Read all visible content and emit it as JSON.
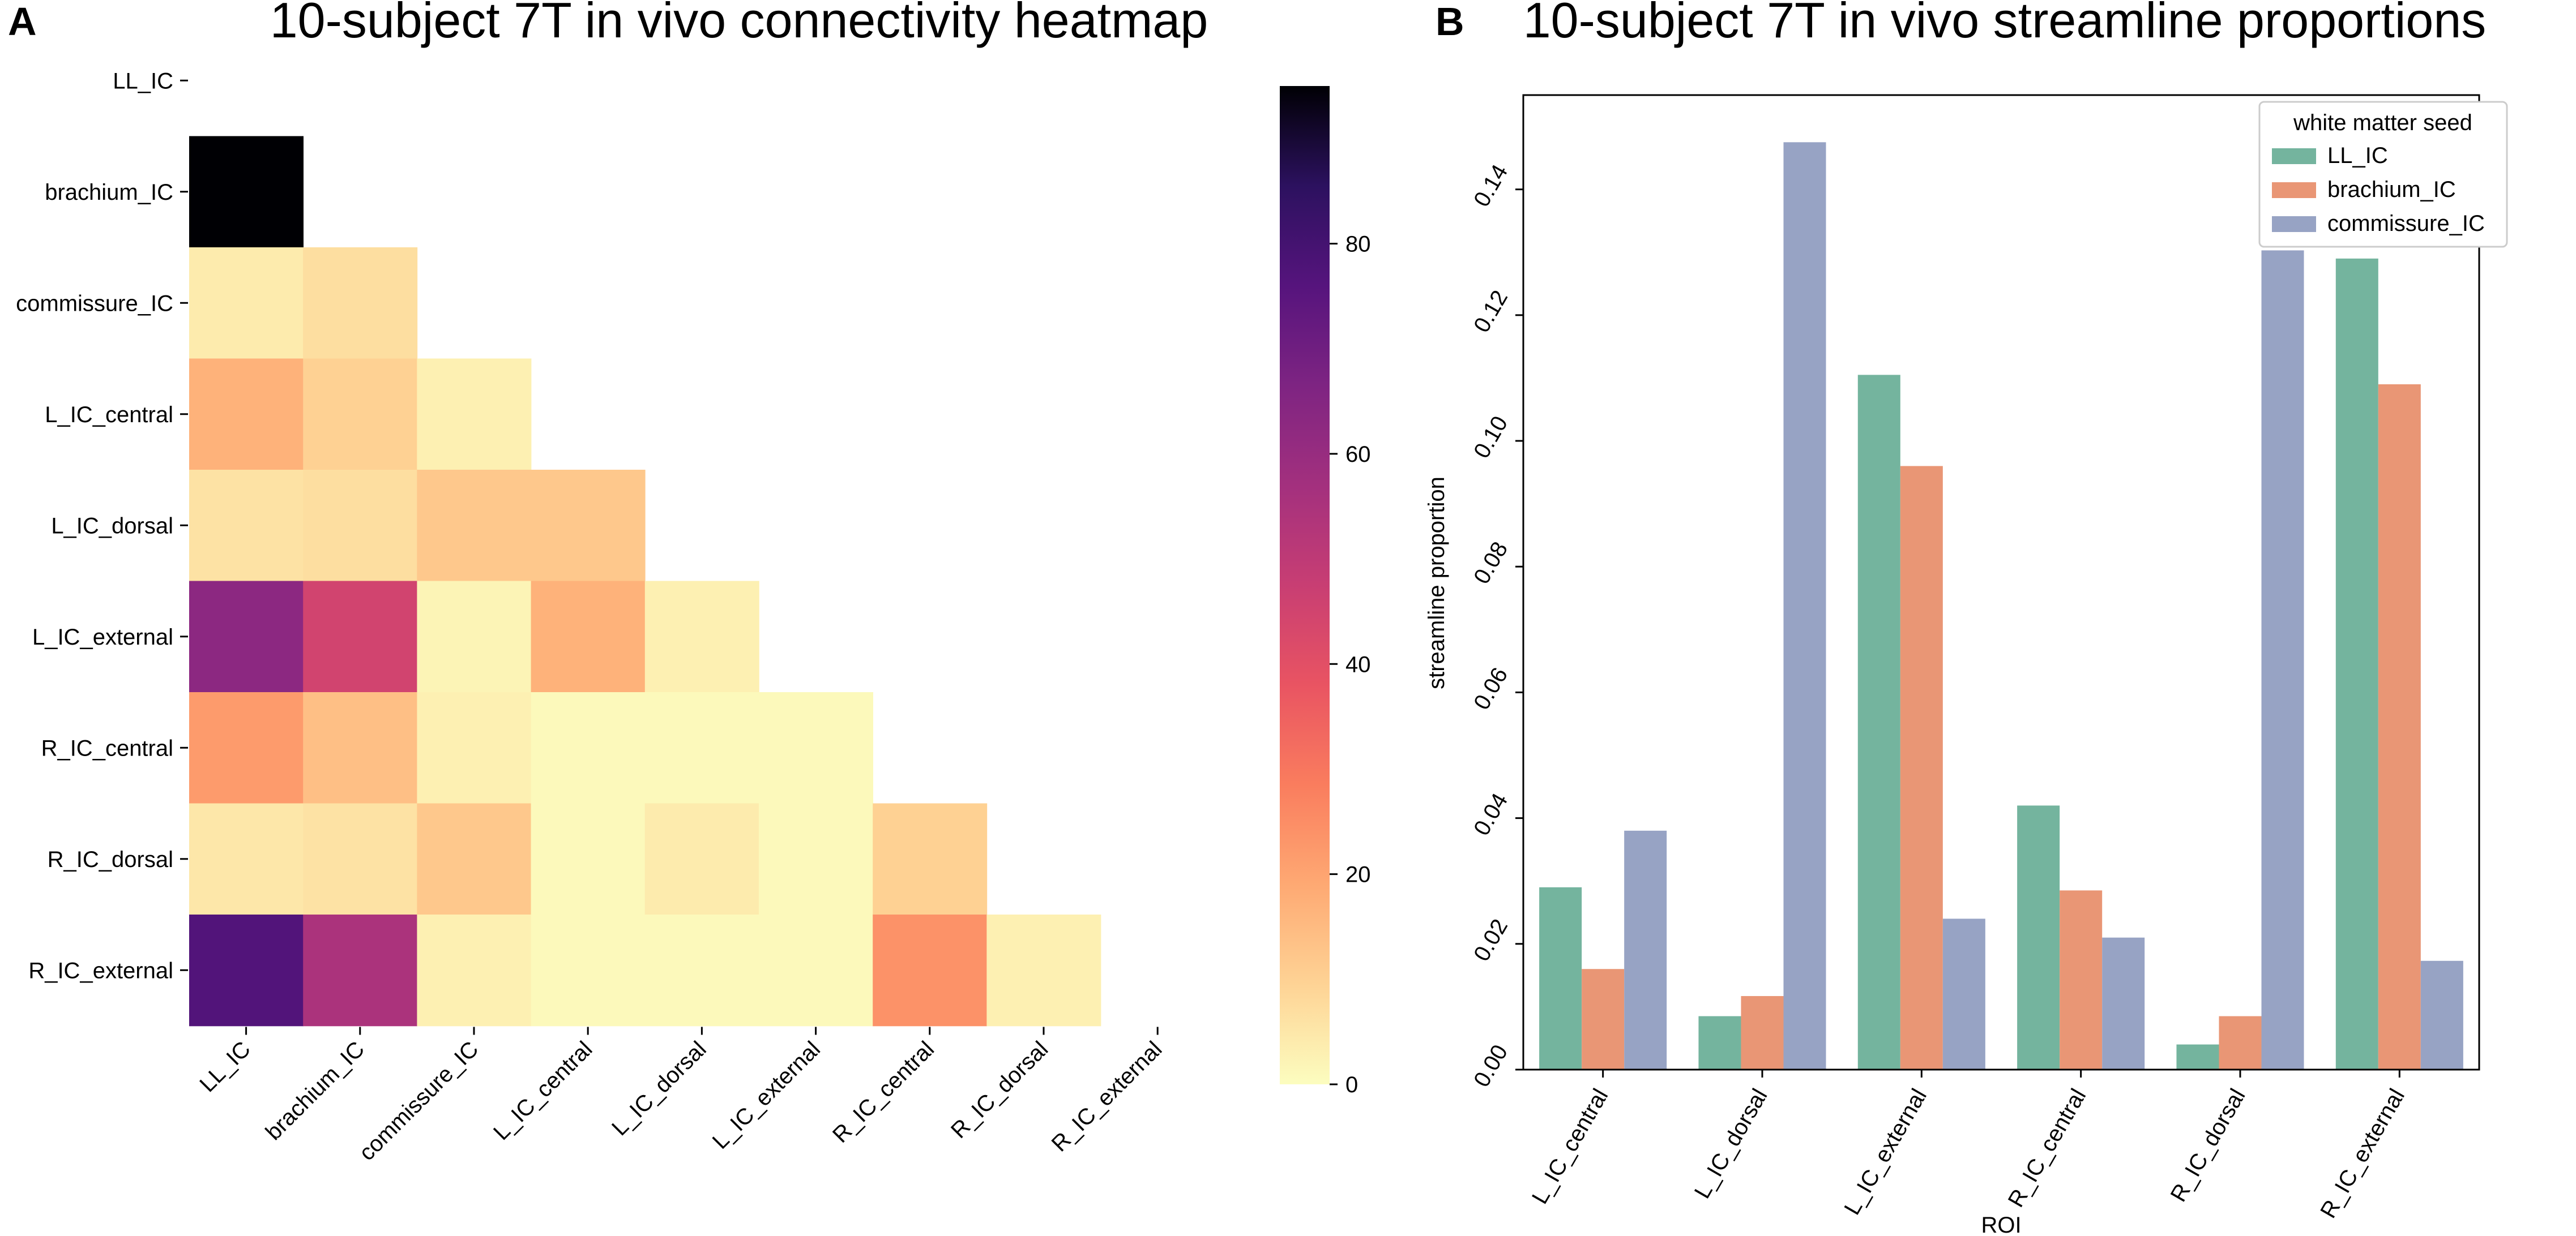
{
  "panels": {
    "a": {
      "letter": "A"
    },
    "b": {
      "letter": "B"
    }
  },
  "chart_data": [
    {
      "type": "heatmap",
      "title": "10-subject 7T in vivo connectivity heatmap",
      "row_labels": [
        "LL_IC",
        "brachium_IC",
        "commissure_IC",
        "L_IC_central",
        "L_IC_dorsal",
        "L_IC_external",
        "R_IC_central",
        "R_IC_dorsal",
        "R_IC_external"
      ],
      "col_labels": [
        "LL_IC",
        "brachium_IC",
        "commissure_IC",
        "L_IC_central",
        "L_IC_dorsal",
        "L_IC_external",
        "R_IC_central",
        "R_IC_dorsal",
        "R_IC_external"
      ],
      "values": [
        [
          null,
          null,
          null,
          null,
          null,
          null,
          null,
          null,
          null
        ],
        [
          95,
          null,
          null,
          null,
          null,
          null,
          null,
          null,
          null
        ],
        [
          4,
          7,
          null,
          null,
          null,
          null,
          null,
          null,
          null
        ],
        [
          17,
          10,
          3,
          null,
          null,
          null,
          null,
          null,
          null
        ],
        [
          6,
          7,
          12,
          12,
          null,
          null,
          null,
          null,
          null
        ],
        [
          63,
          45,
          2,
          17,
          3,
          null,
          null,
          null,
          null
        ],
        [
          22,
          14,
          3,
          1,
          1,
          1,
          null,
          null,
          null
        ],
        [
          5,
          6,
          12,
          1,
          4,
          1,
          10,
          null,
          null
        ],
        [
          77,
          55,
          3,
          1,
          1,
          1,
          24,
          3,
          null
        ]
      ],
      "colormap": "magma_r",
      "colorbar": {
        "min": 0,
        "max": 95,
        "ticks": [
          0,
          20,
          40,
          60,
          80
        ]
      }
    },
    {
      "type": "bar",
      "title": "10-subject 7T in vivo streamline proportions",
      "xlabel": "ROI",
      "ylabel": "streamline proportion",
      "categories": [
        "L_IC_central",
        "L_IC_dorsal",
        "L_IC_external",
        "R_IC_central",
        "R_IC_dorsal",
        "R_IC_external"
      ],
      "series": [
        {
          "name": "LL_IC",
          "color": "#74b49e",
          "values": [
            0.029,
            0.0085,
            0.1105,
            0.042,
            0.004,
            0.129
          ]
        },
        {
          "name": "brachium_IC",
          "color": "#e99675",
          "values": [
            0.016,
            0.0117,
            0.096,
            0.0285,
            0.0085,
            0.109
          ]
        },
        {
          "name": "commissure_IC",
          "color": "#97a3c4",
          "values": [
            0.038,
            0.1475,
            0.024,
            0.021,
            0.1303,
            0.0173
          ]
        }
      ],
      "ylim": [
        0,
        0.155
      ],
      "yticks": [
        "0.00",
        "0.02",
        "0.04",
        "0.06",
        "0.08",
        "0.10",
        "0.12",
        "0.14"
      ],
      "legend": {
        "title": "white matter seed",
        "position": "top-right"
      }
    }
  ]
}
